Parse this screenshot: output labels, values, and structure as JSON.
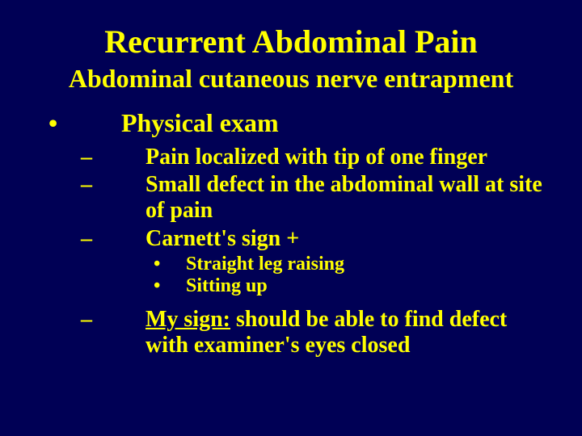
{
  "background_color": "#000055",
  "text_color": "#ffff00",
  "font_family": "Times New Roman",
  "title": "Recurrent Abdominal Pain",
  "subtitle": "Abdominal cutaneous nerve entrapment",
  "title_fontsize": 40,
  "subtitle_fontsize": 32,
  "level1_fontsize": 32,
  "level2_fontsize": 28,
  "level3_fontsize": 24,
  "level1": {
    "bullet": "•",
    "text": "Physical exam"
  },
  "level2_items": [
    {
      "bullet": "–",
      "text": "Pain localized with tip of one finger"
    },
    {
      "bullet": "–",
      "text": "Small defect in the abdominal wall at site of pain"
    },
    {
      "bullet": "–",
      "text": "Carnett's sign +"
    }
  ],
  "level3_items": [
    {
      "bullet": "•",
      "text": "Straight leg raising"
    },
    {
      "bullet": "•",
      "text": "Sitting  up"
    }
  ],
  "final_item": {
    "bullet": "–",
    "underlined": "My sign:",
    "rest": " should be able to find defect with examiner's eyes closed"
  }
}
